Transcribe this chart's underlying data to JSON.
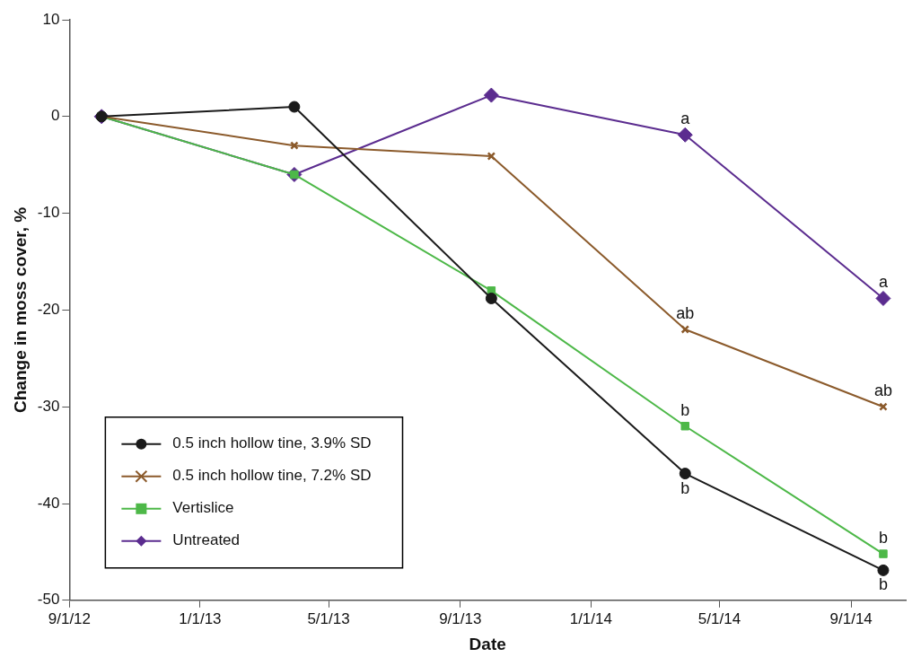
{
  "chart_data": {
    "type": "line",
    "xlabel": "Date",
    "ylabel": "Change in moss cover, %",
    "x": [
      "2012-10-01",
      "2013-03-30",
      "2013-09-30",
      "2014-03-30",
      "2014-10-01"
    ],
    "series": [
      {
        "name": "0.5 inch hollow tine, 3.9% SD",
        "color": "#1a1a1a",
        "marker": "circle",
        "values": [
          0,
          1,
          -18.8,
          -36.9,
          -46.9
        ]
      },
      {
        "name": "0.5 inch hollow tine, 7.2% SD",
        "color": "#8b5a2b",
        "marker": "cross",
        "values": [
          0,
          -3,
          -4.1,
          -22,
          -30
        ]
      },
      {
        "name": "Vertislice",
        "color": "#4db848",
        "marker": "square",
        "values": [
          0,
          -6,
          -18,
          -32,
          -45.2
        ]
      },
      {
        "name": "Untreated",
        "color": "#5b2c8f",
        "marker": "diamond",
        "values": [
          0,
          -6,
          2.2,
          -1.9,
          -18.8
        ]
      }
    ],
    "xlim": [
      "2012-09-01",
      "2014-10-22"
    ],
    "xticks": [
      {
        "value": "2012-09-01",
        "label": "9/1/12"
      },
      {
        "value": "2013-01-01",
        "label": "1/1/13"
      },
      {
        "value": "2013-05-01",
        "label": "5/1/13"
      },
      {
        "value": "2013-09-01",
        "label": "9/1/13"
      },
      {
        "value": "2014-01-01",
        "label": "1/1/14"
      },
      {
        "value": "2014-05-01",
        "label": "5/1/14"
      },
      {
        "value": "2014-09-01",
        "label": "9/1/14"
      }
    ],
    "ylim": [
      -50,
      10
    ],
    "yticks": [
      -50,
      -40,
      -30,
      -20,
      -10,
      0,
      10
    ],
    "grid": false,
    "legend": "bottom left",
    "line_style": "solid",
    "annotations": [
      {
        "text": "a",
        "x": "2014-03-30",
        "y": -1.9
      },
      {
        "text": "ab",
        "x": "2014-03-30",
        "y": -22
      },
      {
        "text": "b",
        "x": "2014-03-30",
        "y": -32
      },
      {
        "text": "b",
        "x": "2014-03-30",
        "y": -36.9
      },
      {
        "text": "a",
        "x": "2014-10-01",
        "y": -18.8
      },
      {
        "text": "ab",
        "x": "2014-10-01",
        "y": -30
      },
      {
        "text": "b",
        "x": "2014-10-01",
        "y": -45.2
      },
      {
        "text": "b",
        "x": "2014-10-01",
        "y": -46.9
      }
    ]
  }
}
